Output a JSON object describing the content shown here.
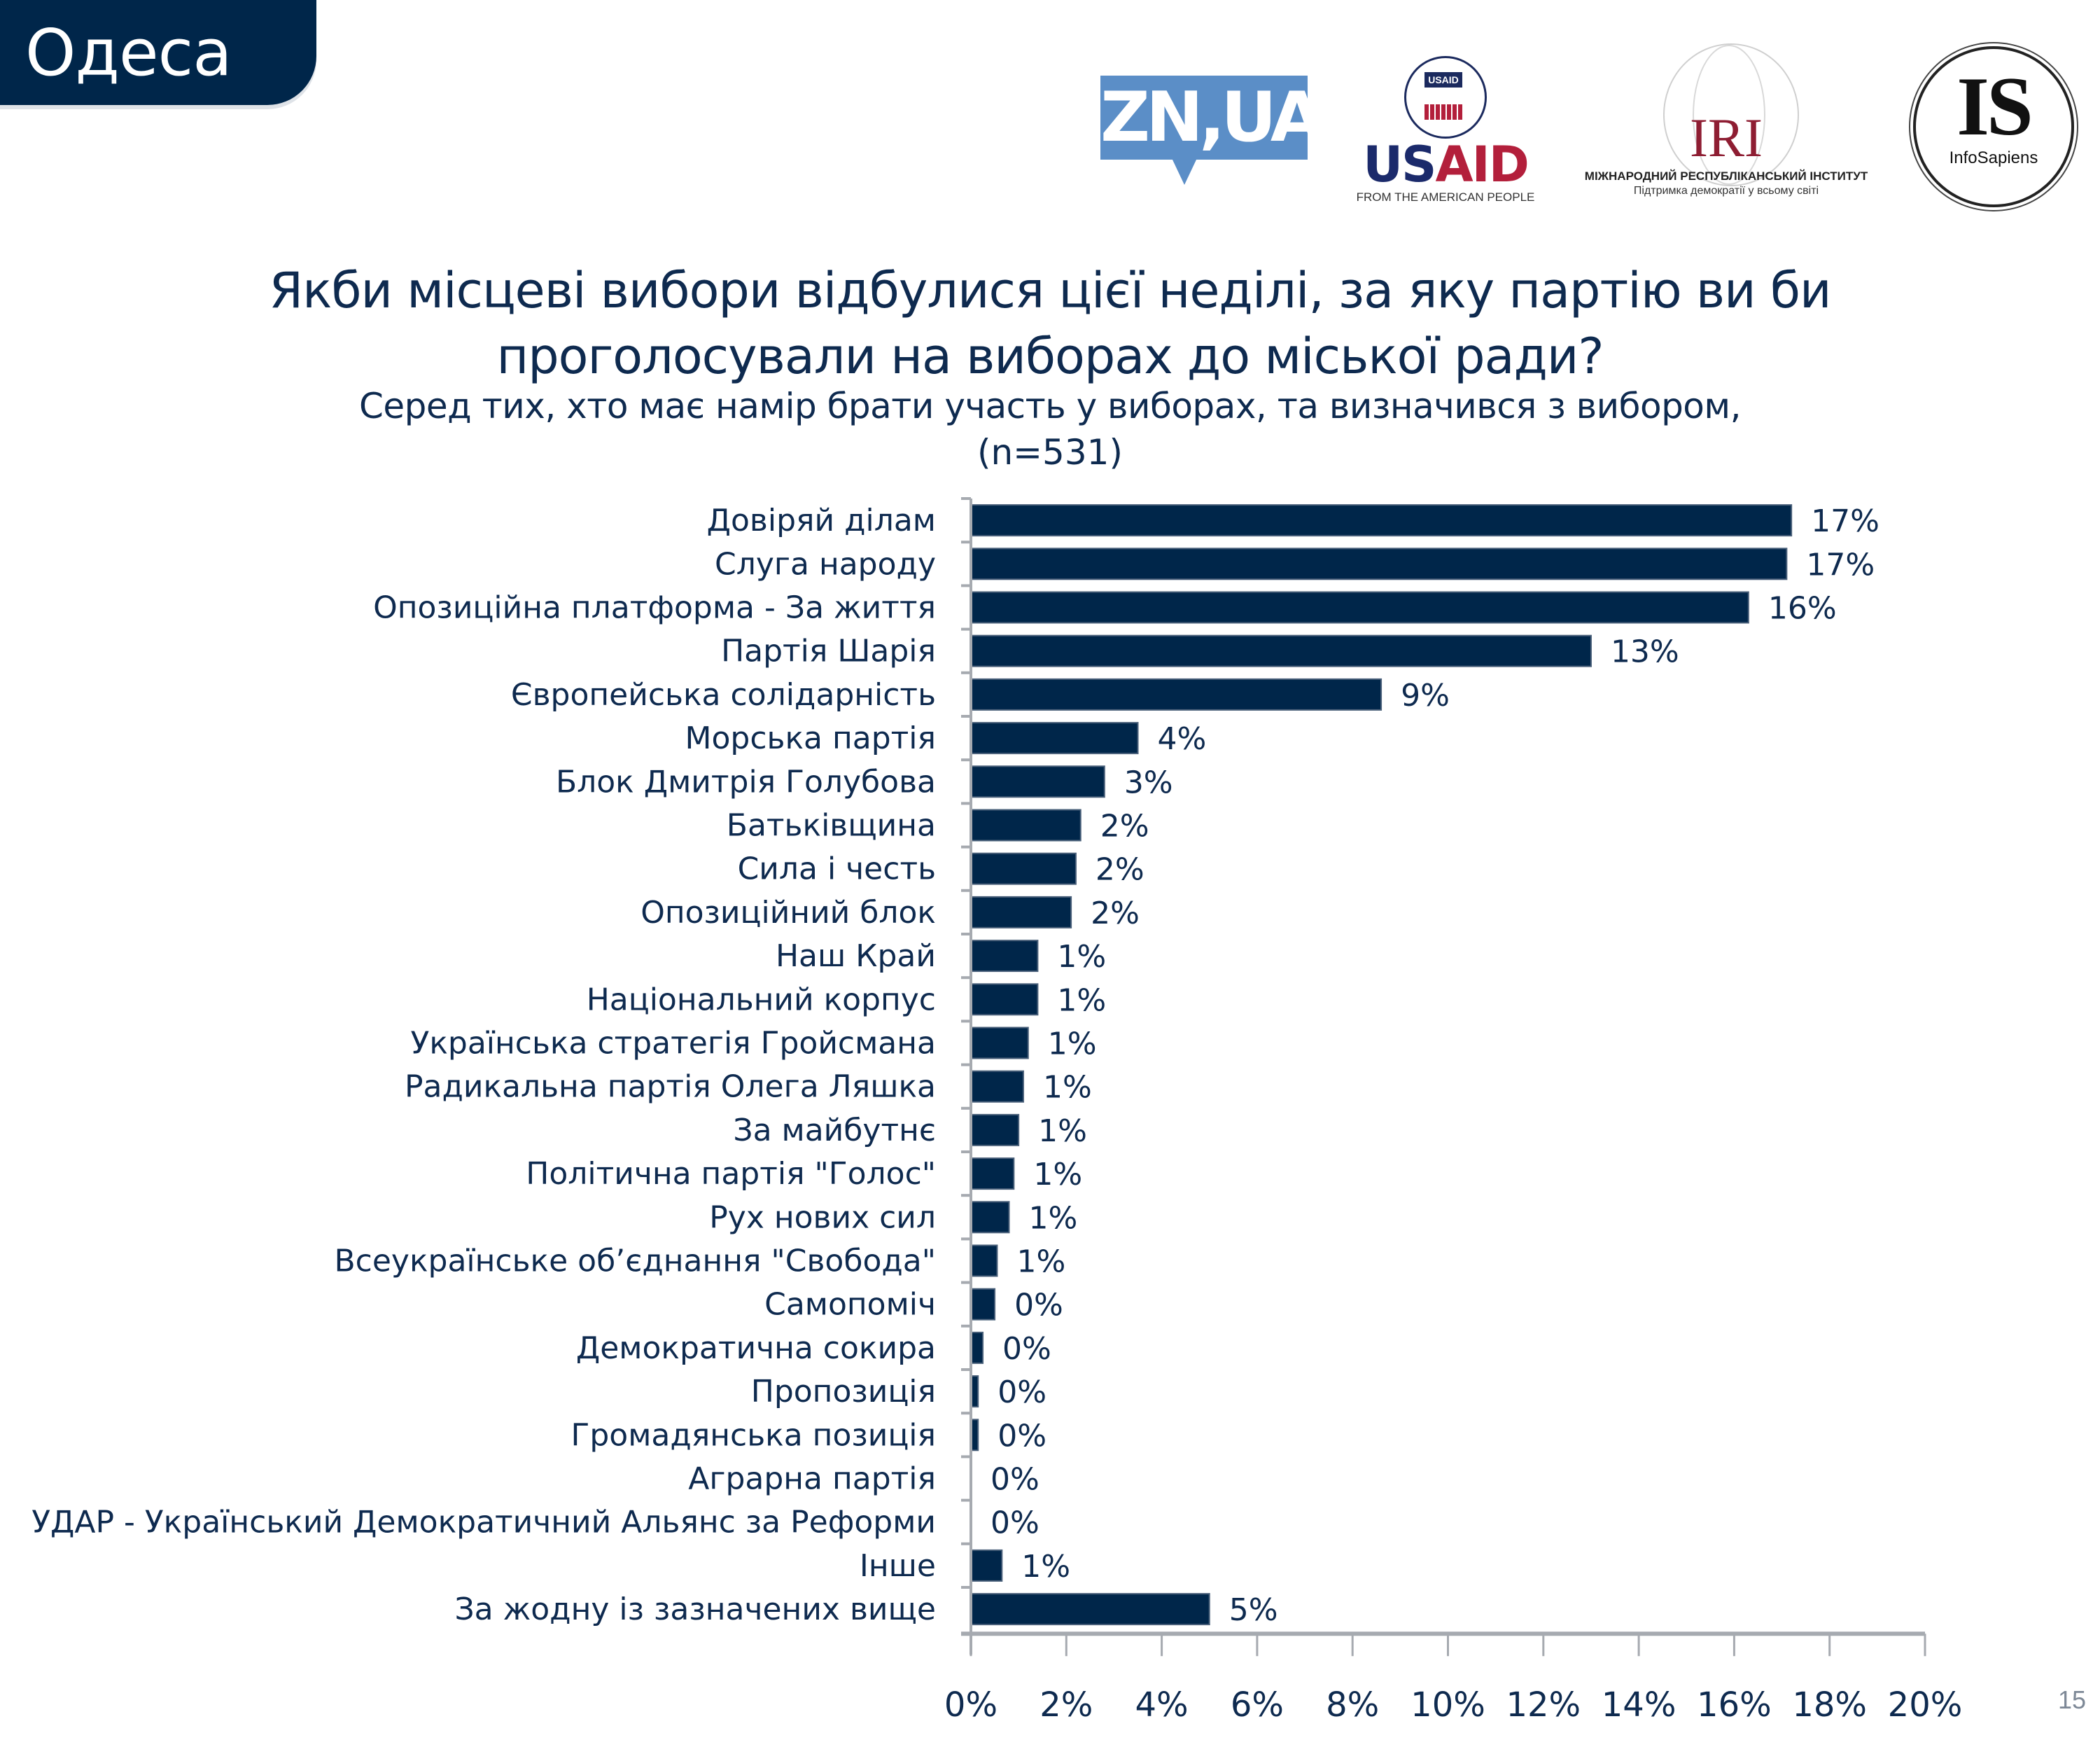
{
  "header": {
    "city": "Одеса",
    "logos": {
      "zn": "ZN,UA",
      "usaid_seal_text": "USAID",
      "usaid_us": "US",
      "usaid_aid": "AID",
      "usaid_sub": "FROM THE AMERICAN PEOPLE",
      "iri": "IRI",
      "iri_line1": "МІЖНАРОДНИЙ РЕСПУБЛІКАНСЬКИЙ ІНСТИТУТ",
      "iri_line2": "Підтримка демократії у всьому світі",
      "is": "IS",
      "is_sub": "InfoSapiens"
    }
  },
  "colors": {
    "bar": "#00264a",
    "text": "#0e2a4f",
    "axis": "#a6aab0",
    "zn_brand": "#5b8ec7",
    "usaid_blue": "#1b2a6b",
    "usaid_red": "#b31f3b",
    "iri_red": "#8e1d32"
  },
  "page_number": "15",
  "chart_data": {
    "type": "bar",
    "orientation": "horizontal",
    "title": "Якби місцеві вибори відбулися цієї неділі, за яку партію ви би проголосували на виборах до міської ради?",
    "title_lines": [
      "Якби місцеві вибори відбулися цієї неділі, за яку партію ви би",
      "проголосували на виборах до міської ради?"
    ],
    "subtitle": "Серед тих, хто має намір брати участь у виборах, та визначився з вибором,",
    "sample": "(n=531)",
    "xlabel": "",
    "ylabel": "",
    "xlim": [
      0,
      20
    ],
    "x_ticks": [
      "0%",
      "2%",
      "4%",
      "6%",
      "8%",
      "10%",
      "12%",
      "14%",
      "16%",
      "18%",
      "20%"
    ],
    "x_tick_values": [
      0,
      2,
      4,
      6,
      8,
      10,
      12,
      14,
      16,
      18,
      20
    ],
    "grid": false,
    "legend": "none",
    "categories": [
      "Довіряй ділам",
      "Слуга народу",
      "Опозиційна платформа - За життя",
      "Партія Шарія",
      "Європейська солідарність",
      "Морська партія",
      "Блок Дмитрія Голубова",
      "Батьківщина",
      "Сила і честь",
      "Опозиційний блок",
      "Наш Край",
      "Національний корпус",
      "Українська стратегія Гройсмана",
      "Радикальна партія Олега Ляшка",
      "За майбутнє",
      "Політична партія \"Голос\"",
      "Рух нових сил",
      "Всеукраїнське об’єднання \"Свобода\"",
      "Самопоміч",
      "Демократична сокира",
      "Пропозиція",
      "Громадянська позиція",
      "Аграрна партія",
      "УДАР - Український Демократичний Альянс за Реформи",
      "Інше",
      "За жодну із зазначених вище"
    ],
    "values": [
      17.2,
      17.1,
      16.3,
      13.0,
      8.6,
      3.5,
      2.8,
      2.3,
      2.2,
      2.1,
      1.4,
      1.4,
      1.2,
      1.1,
      1.0,
      0.9,
      0.8,
      0.55,
      0.5,
      0.25,
      0.15,
      0.15,
      0.0,
      0.0,
      0.65,
      5.0
    ],
    "data_labels": [
      "17%",
      "17%",
      "16%",
      "13%",
      "9%",
      "4%",
      "3%",
      "2%",
      "2%",
      "2%",
      "1%",
      "1%",
      "1%",
      "1%",
      "1%",
      "1%",
      "1%",
      "1%",
      "0%",
      "0%",
      "0%",
      "0%",
      "0%",
      "0%",
      "1%",
      "5%"
    ]
  }
}
